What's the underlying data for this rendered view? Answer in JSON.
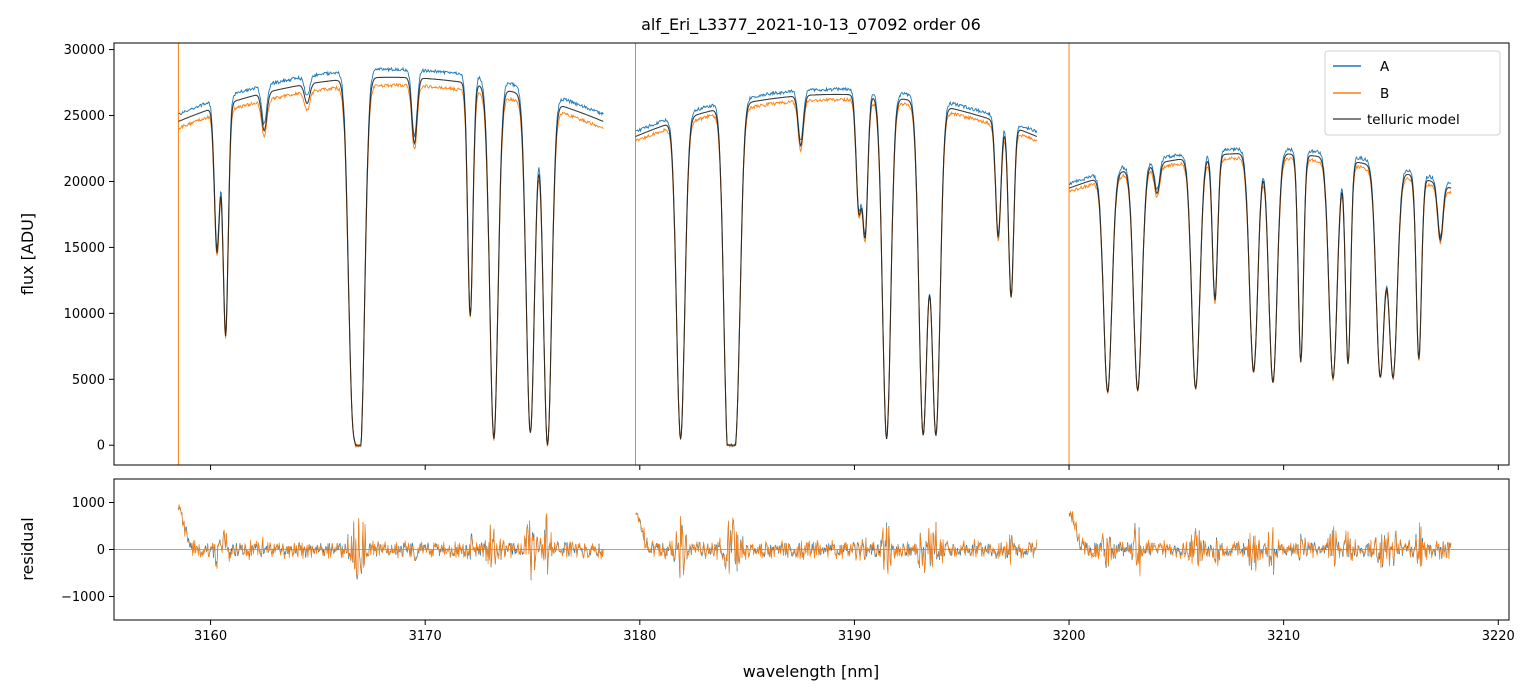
{
  "chart_data": [
    {
      "type": "line",
      "title": "alf_Eri_L3377_2021-10-13_07092  order 06",
      "xlabel": "",
      "ylabel": "flux [ADU]",
      "xlim": [
        3155.5,
        3220.5
      ],
      "ylim": [
        -1500,
        30500
      ],
      "yticks": [
        0,
        5000,
        10000,
        15000,
        20000,
        25000,
        30000
      ],
      "xticks": [
        3160,
        3170,
        3180,
        3190,
        3200,
        3210,
        3220
      ],
      "grid": false,
      "legend_position": "top-right",
      "series": [
        {
          "name": "A",
          "color": "#1f77b4"
        },
        {
          "name": "B",
          "color": "#ff7f0e"
        },
        {
          "name": "telluric model",
          "color": "#555555"
        }
      ],
      "segments": [
        {
          "x_start": 3158.5,
          "x_end": 3178.3,
          "level_A": 28500,
          "level_B": 27300
        },
        {
          "x_start": 3179.8,
          "x_end": 3198.5,
          "level_A": 27000,
          "level_B": 26200
        },
        {
          "x_start": 3200.0,
          "x_end": 3217.8,
          "level_A": 22500,
          "level_B": 21800
        }
      ],
      "absorption_lines": [
        {
          "x": 3160.3,
          "depth": 12000
        },
        {
          "x": 3160.7,
          "depth": 19000
        },
        {
          "x": 3162.5,
          "depth": 3000
        },
        {
          "x": 3164.5,
          "depth": 1500
        },
        {
          "x": 3166.6,
          "depth": 23000
        },
        {
          "x": 3167.0,
          "depth": 26000
        },
        {
          "x": 3169.5,
          "depth": 5000
        },
        {
          "x": 3172.1,
          "depth": 18000
        },
        {
          "x": 3173.2,
          "depth": 27500
        },
        {
          "x": 3174.9,
          "depth": 27000
        },
        {
          "x": 3175.7,
          "depth": 28000
        },
        {
          "x": 3181.9,
          "depth": 27500
        },
        {
          "x": 3184.1,
          "depth": 27000
        },
        {
          "x": 3184.5,
          "depth": 24000
        },
        {
          "x": 3187.5,
          "depth": 4000
        },
        {
          "x": 3190.2,
          "depth": 9000
        },
        {
          "x": 3190.5,
          "depth": 11000
        },
        {
          "x": 3191.5,
          "depth": 27500
        },
        {
          "x": 3193.2,
          "depth": 27000
        },
        {
          "x": 3193.8,
          "depth": 27000
        },
        {
          "x": 3196.7,
          "depth": 10000
        },
        {
          "x": 3197.3,
          "depth": 15000
        },
        {
          "x": 3201.8,
          "depth": 22500
        },
        {
          "x": 3203.2,
          "depth": 22500
        },
        {
          "x": 3204.1,
          "depth": 3000
        },
        {
          "x": 3205.9,
          "depth": 22500
        },
        {
          "x": 3206.8,
          "depth": 14000
        },
        {
          "x": 3208.6,
          "depth": 21000
        },
        {
          "x": 3209.5,
          "depth": 22000
        },
        {
          "x": 3210.8,
          "depth": 20000
        },
        {
          "x": 3212.3,
          "depth": 21500
        },
        {
          "x": 3213.0,
          "depth": 20000
        },
        {
          "x": 3214.5,
          "depth": 21000
        },
        {
          "x": 3215.1,
          "depth": 21000
        },
        {
          "x": 3216.3,
          "depth": 19000
        },
        {
          "x": 3217.3,
          "depth": 6000
        }
      ]
    },
    {
      "type": "line",
      "title": "",
      "xlabel": "wavelength [nm]",
      "ylabel": "residual",
      "xlim": [
        3155.5,
        3220.5
      ],
      "ylim": [
        -1500,
        1500
      ],
      "yticks": [
        -1000,
        0,
        1000
      ],
      "xticks": [
        3160,
        3170,
        3180,
        3190,
        3200,
        3210,
        3220
      ],
      "zero_line": true,
      "series": [
        {
          "name": "A",
          "color": "#1f77b4"
        },
        {
          "name": "B",
          "color": "#ff7f0e"
        }
      ]
    }
  ]
}
